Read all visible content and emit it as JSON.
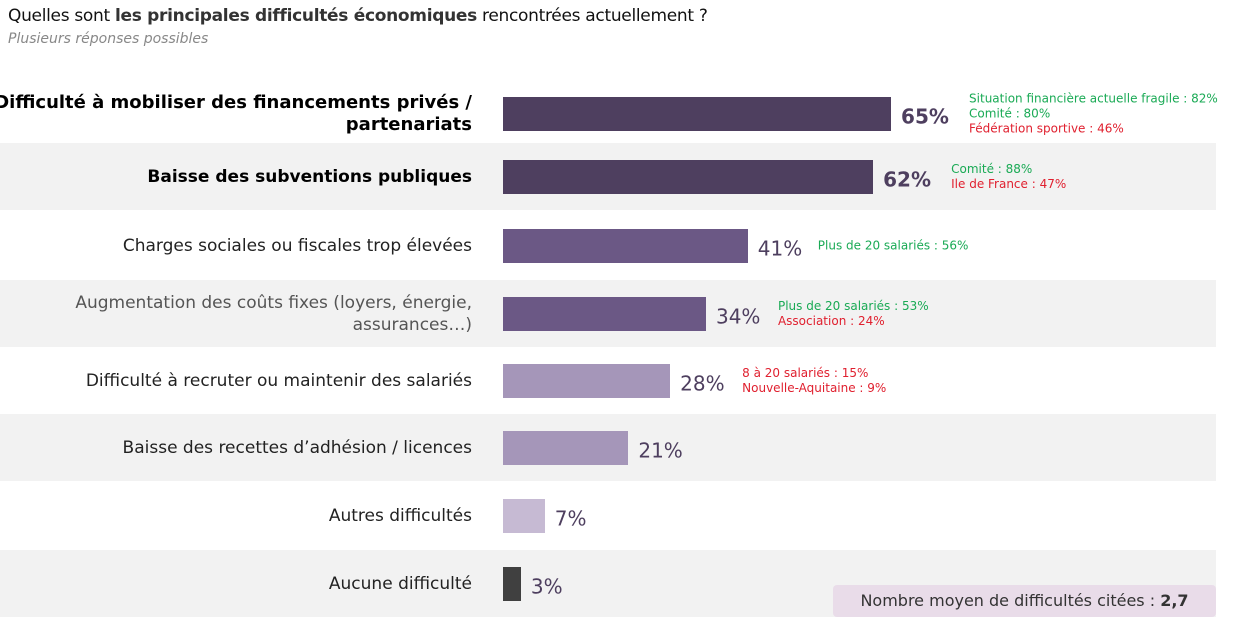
{
  "header": {
    "q_pre": "Quelles sont ",
    "q_bold": "les principales difficultés économiques",
    "q_post": " rencontrées actuellement ?",
    "subtitle": "Plusieurs réponses possibles"
  },
  "chart_data": {
    "type": "bar",
    "orientation": "horizontal",
    "xlim": [
      0,
      100
    ],
    "categories": [
      "Difficulté à mobiliser des financements privés / partenariats",
      "Baisse des subventions publiques",
      "Charges sociales ou fiscales trop élevées",
      "Augmentation des coûts fixes (loyers, énergie, assurances…)",
      "Difficulté à recruter ou maintenir des salariés",
      "Baisse des recettes d’adhésion / licences",
      "Autres difficultés",
      "Aucune difficulté"
    ],
    "values": [
      65,
      62,
      41,
      34,
      28,
      21,
      7,
      3
    ],
    "value_labels": [
      "65%",
      "62%",
      "41%",
      "34%",
      "28%",
      "21%",
      "7%",
      "3%"
    ],
    "colors": [
      "#4e3f5f",
      "#4e3f5f",
      "#6b5885",
      "#6b5885",
      "#a596b9",
      "#a596b9",
      "#c6bad3",
      "#404040"
    ],
    "annotations": [
      [
        {
          "text": "Situation financière actuelle fragile : 82%",
          "color": "green"
        },
        {
          "text": "Comité : 80%",
          "color": "green"
        },
        {
          "text": "Fédération sportive : 46%",
          "color": "red"
        }
      ],
      [
        {
          "text": "Comité : 88%",
          "color": "green"
        },
        {
          "text": "Ile de France : 47%",
          "color": "red"
        }
      ],
      [
        {
          "text": "Plus de 20 salariés : 56%",
          "color": "green"
        }
      ],
      [
        {
          "text": "Plus de 20 salariés : 53%",
          "color": "green"
        },
        {
          "text": "Association : 24%",
          "color": "red"
        }
      ],
      [
        {
          "text": "8 à 20 salariés : 15%",
          "color": "red"
        },
        {
          "text": "Nouvelle-Aquitaine : 9%",
          "color": "red"
        }
      ],
      [],
      [],
      []
    ]
  },
  "footer": {
    "avg_label": "Nombre moyen de difficultés citées : ",
    "avg_value": "2,7"
  }
}
